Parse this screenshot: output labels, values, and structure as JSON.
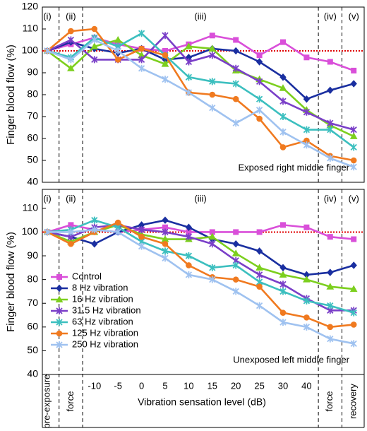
{
  "chart_data": [
    {
      "type": "line",
      "ylabel": "Finger blood flow (%)",
      "caption": "Exposed right middle finger",
      "annotations": [
        "(i)",
        "(ii)",
        "(iii)",
        "(iv)",
        "(v)"
      ],
      "ylim": [
        40,
        120
      ],
      "yticks": [
        40,
        50,
        60,
        70,
        80,
        90,
        100,
        110,
        120
      ],
      "reference_line": 100,
      "reference_color": "#e00000",
      "series": [
        {
          "color": "#d94fd9",
          "marker": "square",
          "values": [
            100,
            103,
            106,
            103,
            101,
            100,
            103,
            107,
            105,
            98,
            104,
            97,
            95,
            91
          ]
        },
        {
          "color": "#1a2fa0",
          "marker": "diamond",
          "values": [
            100,
            104,
            101,
            99,
            101,
            96,
            97,
            101,
            100,
            95,
            88,
            78,
            82,
            85
          ]
        },
        {
          "color": "#7ccf1e",
          "marker": "triangle",
          "values": [
            100,
            92,
            102,
            105,
            98,
            94,
            102,
            101,
            91,
            87,
            83,
            73,
            66,
            61
          ]
        },
        {
          "color": "#7a3fc8",
          "marker": "cross",
          "values": [
            100,
            105,
            96,
            96,
            96,
            107,
            95,
            98,
            92,
            86,
            77,
            72,
            67,
            64
          ]
        },
        {
          "color": "#3cbfbf",
          "marker": "cross",
          "values": [
            100,
            97,
            106,
            102,
            108,
            98,
            88,
            86,
            85,
            78,
            70,
            64,
            64,
            56
          ]
        },
        {
          "color": "#f07a20",
          "marker": "circle",
          "values": [
            100,
            109,
            110,
            96,
            101,
            98,
            81,
            80,
            78,
            69,
            56,
            59,
            52,
            50
          ]
        },
        {
          "color": "#9fc2f0",
          "marker": "cross",
          "values": [
            100,
            96,
            105,
            100,
            92,
            87,
            81,
            74,
            67,
            73,
            63,
            57,
            51,
            47
          ]
        }
      ]
    },
    {
      "type": "line",
      "ylabel": "Finger blood flow (%)",
      "caption": "Unexposed left middle finger",
      "annotations": [
        "(i)",
        "(ii)",
        "(iii)",
        "(iv)",
        "(v)"
      ],
      "xlabel": "Vibration sensation level (dB)",
      "categories": [
        "pre-exposure",
        "force",
        "-10",
        "-5",
        "0",
        "5",
        "10",
        "15",
        "20",
        "25",
        "30",
        "40",
        "force",
        "recovery"
      ],
      "ylim": [
        40,
        118
      ],
      "yticks": [
        40,
        50,
        60,
        70,
        80,
        90,
        100,
        110
      ],
      "reference_line": 100,
      "reference_color": "#e00000",
      "legend": true,
      "series": [
        {
          "name": "Control",
          "color": "#d94fd9",
          "marker": "square",
          "values": [
            100,
            103,
            101,
            100,
            101,
            102,
            100,
            100,
            100,
            100,
            103,
            102,
            98,
            97
          ]
        },
        {
          "name": "8 Hz vibration",
          "color": "#1a2fa0",
          "marker": "diamond",
          "values": [
            100,
            98,
            95,
            100,
            103,
            105,
            102,
            97,
            95,
            92,
            85,
            82,
            83,
            86
          ]
        },
        {
          "name": "16 Hz vibration",
          "color": "#7ccf1e",
          "marker": "triangle",
          "values": [
            100,
            96,
            100,
            103,
            99,
            97,
            97,
            98,
            91,
            85,
            82,
            80,
            77,
            76
          ]
        },
        {
          "name": "31.5 Hz vibration",
          "color": "#7a3fc8",
          "marker": "cross",
          "values": [
            100,
            98,
            102,
            103,
            101,
            100,
            98,
            95,
            88,
            82,
            78,
            72,
            67,
            67
          ]
        },
        {
          "name": "63 Hz vibration",
          "color": "#3cbfbf",
          "marker": "cross",
          "values": [
            100,
            101,
            105,
            102,
            96,
            92,
            90,
            85,
            86,
            79,
            75,
            71,
            69,
            66
          ]
        },
        {
          "name": "125 Hz vibration",
          "color": "#f07a20",
          "marker": "circle",
          "values": [
            100,
            95,
            100,
            104,
            98,
            95,
            86,
            81,
            80,
            77,
            66,
            64,
            60,
            61
          ]
        },
        {
          "name": "250 Hz vibration",
          "color": "#9fc2f0",
          "marker": "cross",
          "values": [
            100,
            100,
            101,
            100,
            94,
            89,
            82,
            80,
            75,
            69,
            62,
            60,
            55,
            53
          ]
        }
      ]
    }
  ]
}
